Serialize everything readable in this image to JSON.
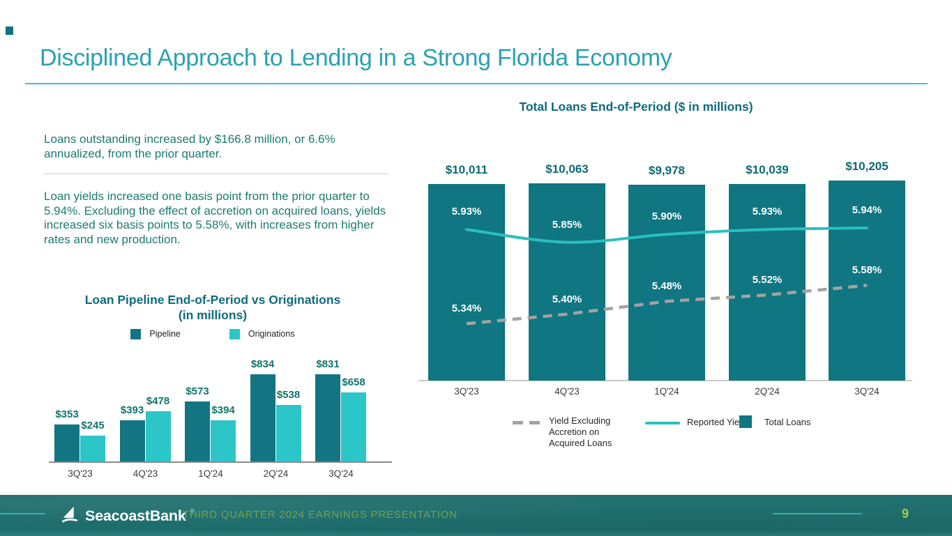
{
  "slide_title": "Disciplined Approach to Lending in a Strong Florida Economy",
  "accent_color": "#2AA2AF",
  "body": {
    "paragraph1": "Loans outstanding increased by $166.8 million, or 6.6% annualized, from the prior quarter.",
    "paragraph2": "Loan yields increased one basis point from the prior quarter to 5.94%. Excluding the effect of accretion on acquired loans, yields increased six basis points to 5.58%, with increases from higher rates and new production."
  },
  "chart_data": [
    {
      "id": "loan_pipeline_vs_originations",
      "type": "bar",
      "title": "Loan Pipeline End-of-Period vs Originations",
      "subtitle": "(in millions)",
      "categories": [
        "3Q'23",
        "4Q'23",
        "1Q'24",
        "2Q'24",
        "3Q'24"
      ],
      "series": [
        {
          "name": "Pipeline",
          "color": "#137582",
          "values": [
            353,
            393,
            573,
            834,
            831
          ],
          "labels": [
            "$353",
            "$393",
            "$573",
            "$834",
            "$831"
          ]
        },
        {
          "name": "Originations",
          "color": "#2CC5C8",
          "values": [
            245,
            478,
            394,
            538,
            658
          ],
          "labels": [
            "$245",
            "$478",
            "$394",
            "$538",
            "$658"
          ]
        }
      ],
      "legend_position": "top",
      "grid": false,
      "ylim": [
        0,
        900
      ]
    },
    {
      "id": "total_loans_end_of_period",
      "type": "bar+line",
      "title": "Total Loans End-of-Period ($ in millions)",
      "categories": [
        "3Q'23",
        "4Q'23",
        "1Q'24",
        "2Q'24",
        "3Q'24"
      ],
      "bars": {
        "name": "Total Loans",
        "color": "#0F7682",
        "values": [
          10011,
          10063,
          9978,
          10039,
          10205
        ],
        "labels": [
          "$10,011",
          "$10,063",
          "$9,978",
          "$10,039",
          "$10,205"
        ]
      },
      "lines": [
        {
          "name": "Reported Yield",
          "style": "solid",
          "color": "#2BBFBE",
          "values_pct": [
            5.93,
            5.85,
            5.9,
            5.93,
            5.94
          ],
          "labels": [
            "5.93%",
            "5.85%",
            "5.90%",
            "5.93%",
            "5.94%"
          ]
        },
        {
          "name": "Yield Excluding Accretion on Acquired Loans",
          "style": "dashed",
          "color": "#A3A3A3",
          "values_pct": [
            5.34,
            5.4,
            5.48,
            5.52,
            5.58
          ],
          "labels": [
            "5.34%",
            "5.40%",
            "5.48%",
            "5.52%",
            "5.58%"
          ]
        }
      ],
      "legend_position": "bottom",
      "grid": false,
      "ylim": [
        0,
        10500
      ]
    }
  ],
  "footer": {
    "logo_text": "SeacoastBank",
    "logo_mark": "®",
    "caption": "THIRD QUARTER 2024 EARNINGS PRESENTATION",
    "page_number": "9"
  }
}
